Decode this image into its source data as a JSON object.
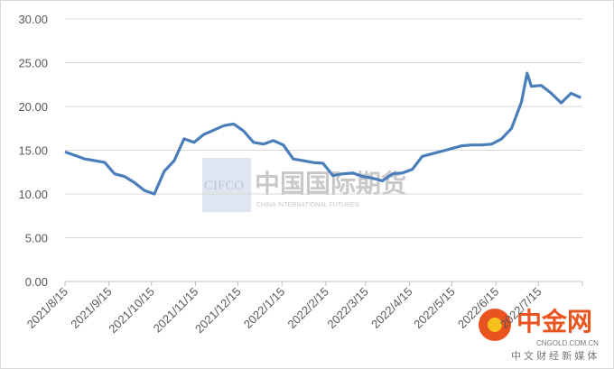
{
  "chart_data": {
    "type": "line",
    "x": [
      "2021/8/15",
      "2021/8/22",
      "2021/8/29",
      "2021/9/5",
      "2021/9/12",
      "2021/9/19",
      "2021/9/26",
      "2021/10/3",
      "2021/10/10",
      "2021/10/17",
      "2021/10/24",
      "2021/10/31",
      "2021/11/7",
      "2021/11/14",
      "2021/11/21",
      "2021/11/28",
      "2021/12/5",
      "2021/12/12",
      "2021/12/19",
      "2021/12/26",
      "2022/1/2",
      "2022/1/9",
      "2022/1/16",
      "2022/1/23",
      "2022/1/30",
      "2022/2/6",
      "2022/2/13",
      "2022/2/20",
      "2022/2/27",
      "2022/3/6",
      "2022/3/13",
      "2022/3/20",
      "2022/3/27",
      "2022/4/3",
      "2022/4/10",
      "2022/4/17",
      "2022/4/24",
      "2022/5/1",
      "2022/5/8",
      "2022/5/15",
      "2022/5/22",
      "2022/5/29",
      "2022/6/5",
      "2022/6/12",
      "2022/6/19",
      "2022/6/26",
      "2022/7/3",
      "2022/7/7",
      "2022/7/10",
      "2022/7/17",
      "2022/7/24",
      "2022/7/31",
      "2022/8/7",
      "2022/8/14"
    ],
    "series": [
      {
        "color": "#4a7ebb",
        "values": [
          14.8,
          14.4,
          14.0,
          13.8,
          13.6,
          12.3,
          12.0,
          11.3,
          10.4,
          10.0,
          12.6,
          13.8,
          16.3,
          15.9,
          16.8,
          17.3,
          17.8,
          18.0,
          17.2,
          15.9,
          15.7,
          16.1,
          15.6,
          14.0,
          13.8,
          13.6,
          13.5,
          12.1,
          12.3,
          12.4,
          12.0,
          11.8,
          11.5,
          12.3,
          12.4,
          12.8,
          14.3,
          14.6,
          14.9,
          15.2,
          15.5,
          15.6,
          15.6,
          15.7,
          16.3,
          17.5,
          20.5,
          23.8,
          22.3,
          22.4,
          21.5,
          20.4,
          21.5,
          21.0
        ]
      }
    ],
    "ylim": [
      0,
      30
    ],
    "yticks": [
      {
        "value": 0,
        "label": "0.00"
      },
      {
        "value": 5,
        "label": "5.00"
      },
      {
        "value": 10,
        "label": "10.00"
      },
      {
        "value": 15,
        "label": "15.00"
      },
      {
        "value": 20,
        "label": "20.00"
      },
      {
        "value": 25,
        "label": "25.00"
      },
      {
        "value": 30,
        "label": "30.00"
      }
    ],
    "xlim": [
      "2021/8/15",
      "2022/8/15"
    ],
    "xticks": [
      "2021/8/15",
      "2021/9/15",
      "2021/10/15",
      "2021/11/15",
      "2021/12/15",
      "2022/1/15",
      "2022/2/15",
      "2022/3/15",
      "2022/4/15",
      "2022/5/15",
      "2022/6/15",
      "2022/7/15"
    ],
    "grid": true,
    "watermarks": [
      "CIFCO",
      "中国国际期货",
      "CHINA INTERNATIONAL FUTURES",
      "中金网",
      "CNGOLD.COM.CN",
      "中 文 财 经 新 媒 体"
    ]
  }
}
